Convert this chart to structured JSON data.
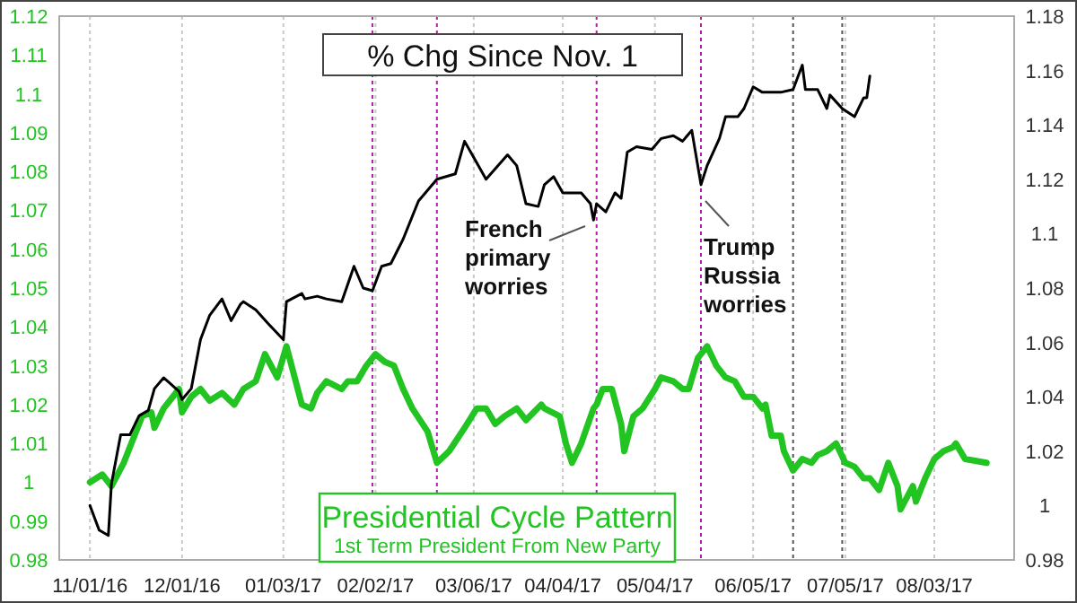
{
  "chart_data": {
    "type": "line",
    "title": "% Chg Since Nov. 1",
    "xlim": [
      "2016-10-22",
      "2017-08-29"
    ],
    "xticks": [
      {
        "value": "2016-11-01",
        "label": "11/01/16"
      },
      {
        "value": "2016-12-01",
        "label": "12/01/16"
      },
      {
        "value": "2017-01-03",
        "label": "01/03/17"
      },
      {
        "value": "2017-02-02",
        "label": "02/02/17"
      },
      {
        "value": "2017-03-06",
        "label": "03/06/17"
      },
      {
        "value": "2017-04-04",
        "label": "04/04/17"
      },
      {
        "value": "2017-05-04",
        "label": "05/04/17"
      },
      {
        "value": "2017-06-05",
        "label": "06/05/17"
      },
      {
        "value": "2017-07-05",
        "label": "07/05/17"
      },
      {
        "value": "2017-08-03",
        "label": "08/03/17"
      }
    ],
    "ylim": [
      0.98,
      1.12
    ],
    "yticks": [
      0.98,
      0.99,
      {
        "value": 1,
        "label": "1"
      },
      1.01,
      1.02,
      1.03,
      1.04,
      1.05,
      1.06,
      1.07,
      1.08,
      1.09,
      {
        "value": 1.1,
        "label": "1.1"
      },
      1.11,
      1.12
    ],
    "y2lim": [
      0.98,
      1.18
    ],
    "y2ticks": [
      0.98,
      {
        "value": 1,
        "label": "1"
      },
      1.02,
      1.04,
      1.06,
      1.08,
      {
        "value": 1.1,
        "label": "1.1"
      },
      1.12,
      1.14,
      1.16,
      1.18
    ],
    "grid": "x",
    "legend": "bottom",
    "line_style": "solid",
    "marker": "none",
    "series": [
      {
        "name": "Presidential Cycle Pattern",
        "color": "#22c422",
        "x": [
          "2016-11-01",
          "2016-11-05",
          "2016-11-08",
          "2016-11-10",
          "2016-11-12",
          "2016-11-15",
          "2016-11-18",
          "2016-11-21",
          "2016-11-22",
          "2016-11-25",
          "2016-11-30",
          "2016-12-01",
          "2016-12-04",
          "2016-12-07",
          "2016-12-10",
          "2016-12-14",
          "2016-12-18",
          "2016-12-21",
          "2016-12-25",
          "2016-12-28",
          "2017-01-01",
          "2017-01-04",
          "2017-01-06",
          "2017-01-09",
          "2017-01-12",
          "2017-01-14",
          "2017-01-17",
          "2017-01-22",
          "2017-01-24",
          "2017-01-27",
          "2017-01-30",
          "2017-02-02",
          "2017-02-05",
          "2017-02-08",
          "2017-02-11",
          "2017-02-14",
          "2017-02-19",
          "2017-02-22",
          "2017-02-26",
          "2017-03-03",
          "2017-03-07",
          "2017-03-10",
          "2017-03-13",
          "2017-03-16",
          "2017-03-20",
          "2017-03-23",
          "2017-03-28",
          "2017-03-29",
          "2017-04-03",
          "2017-04-05",
          "2017-04-07",
          "2017-04-10",
          "2017-04-14",
          "2017-04-15",
          "2017-04-17",
          "2017-04-20",
          "2017-04-23",
          "2017-04-24",
          "2017-04-27",
          "2017-04-30",
          "2017-05-04",
          "2017-05-06",
          "2017-05-10",
          "2017-05-13",
          "2017-05-15",
          "2017-05-18",
          "2017-05-21",
          "2017-05-24",
          "2017-05-27",
          "2017-05-30",
          "2017-06-02",
          "2017-06-05",
          "2017-06-08",
          "2017-06-09",
          "2017-06-11",
          "2017-06-14",
          "2017-06-15",
          "2017-06-18",
          "2017-06-21",
          "2017-06-24",
          "2017-06-26",
          "2017-06-29",
          "2017-07-02",
          "2017-07-05",
          "2017-07-08",
          "2017-07-11",
          "2017-07-13",
          "2017-07-16",
          "2017-07-19",
          "2017-07-22",
          "2017-07-23",
          "2017-07-27",
          "2017-07-28",
          "2017-07-31",
          "2017-08-03",
          "2017-08-06",
          "2017-08-09",
          "2017-08-10",
          "2017-08-13",
          "2017-08-20"
        ],
        "values": [
          1.0,
          1.002,
          0.999,
          1.002,
          1.005,
          1.011,
          1.017,
          1.018,
          1.014,
          1.019,
          1.024,
          1.018,
          1.022,
          1.024,
          1.021,
          1.023,
          1.02,
          1.024,
          1.026,
          1.033,
          1.027,
          1.035,
          1.029,
          1.02,
          1.019,
          1.023,
          1.026,
          1.024,
          1.026,
          1.026,
          1.03,
          1.033,
          1.031,
          1.03,
          1.024,
          1.019,
          1.013,
          1.005,
          1.008,
          1.014,
          1.019,
          1.019,
          1.015,
          1.017,
          1.019,
          1.016,
          1.02,
          1.019,
          1.017,
          1.01,
          1.005,
          1.01,
          1.019,
          1.02,
          1.024,
          1.024,
          1.015,
          1.008,
          1.017,
          1.019,
          1.024,
          1.027,
          1.026,
          1.024,
          1.024,
          1.032,
          1.035,
          1.03,
          1.027,
          1.026,
          1.022,
          1.022,
          1.019,
          1.02,
          1.012,
          1.012,
          1.008,
          1.003,
          1.006,
          1.005,
          1.007,
          1.008,
          1.01,
          1.005,
          1.004,
          1.001,
          1.001,
          0.998,
          1.005,
          0.999,
          0.993,
          0.999,
          0.995,
          1.001,
          1.006,
          1.008,
          1.009,
          1.01,
          1.006,
          1.005
        ]
      },
      {
        "color": "#000000",
        "axis": "y2",
        "x": [
          "2016-11-01",
          "2016-11-04",
          "2016-11-07",
          "2016-11-08",
          "2016-11-11",
          "2016-11-14",
          "2016-11-17",
          "2016-11-20",
          "2016-11-22",
          "2016-11-25",
          "2016-11-30",
          "2016-12-01",
          "2016-12-04",
          "2016-12-07",
          "2016-12-10",
          "2016-12-14",
          "2016-12-17",
          "2016-12-20",
          "2016-12-21",
          "2016-12-25",
          "2016-12-29",
          "2017-01-03",
          "2017-01-04",
          "2017-01-09",
          "2017-01-10",
          "2017-01-14",
          "2017-01-17",
          "2017-01-22",
          "2017-01-26",
          "2017-01-29",
          "2017-02-01",
          "2017-02-04",
          "2017-02-07",
          "2017-02-11",
          "2017-02-16",
          "2017-02-22",
          "2017-02-28",
          "2017-03-03",
          "2017-03-06",
          "2017-03-10",
          "2017-03-17",
          "2017-03-20",
          "2017-03-23",
          "2017-03-27",
          "2017-03-29",
          "2017-04-01",
          "2017-04-04",
          "2017-04-10",
          "2017-04-13",
          "2017-04-14",
          "2017-04-15",
          "2017-04-18",
          "2017-04-21",
          "2017-04-23",
          "2017-04-25",
          "2017-04-28",
          "2017-05-03",
          "2017-05-06",
          "2017-05-10",
          "2017-05-13",
          "2017-05-16",
          "2017-05-19",
          "2017-05-21",
          "2017-05-25",
          "2017-05-27",
          "2017-05-31",
          "2017-06-02",
          "2017-06-05",
          "2017-06-08",
          "2017-06-14",
          "2017-06-18",
          "2017-06-21",
          "2017-06-22",
          "2017-06-26",
          "2017-06-29",
          "2017-06-30",
          "2017-07-04",
          "2017-07-08",
          "2017-07-11",
          "2017-07-12",
          "2017-07-13"
        ],
        "values": [
          1.0,
          0.991,
          0.989,
          1.008,
          1.026,
          1.026,
          1.033,
          1.035,
          1.043,
          1.047,
          1.042,
          1.039,
          1.043,
          1.061,
          1.07,
          1.076,
          1.068,
          1.074,
          1.075,
          1.072,
          1.067,
          1.061,
          1.075,
          1.078,
          1.076,
          1.077,
          1.076,
          1.075,
          1.088,
          1.08,
          1.079,
          1.088,
          1.089,
          1.098,
          1.112,
          1.12,
          1.122,
          1.134,
          1.128,
          1.12,
          1.129,
          1.125,
          1.111,
          1.11,
          1.118,
          1.121,
          1.115,
          1.115,
          1.111,
          1.105,
          1.111,
          1.108,
          1.115,
          1.113,
          1.13,
          1.132,
          1.131,
          1.135,
          1.136,
          1.134,
          1.138,
          1.118,
          1.125,
          1.135,
          1.143,
          1.143,
          1.146,
          1.154,
          1.152,
          1.152,
          1.153,
          1.162,
          1.153,
          1.153,
          1.146,
          1.151,
          1.146,
          1.143,
          1.15,
          1.15,
          1.158
        ]
      }
    ],
    "ref_lines": [
      {
        "axis": "x",
        "value": "2017-02-01",
        "color": "#aa22aa",
        "line_style": "dotted"
      },
      {
        "axis": "x",
        "value": "2017-02-22",
        "color": "#aa22aa",
        "line_style": "dotted"
      },
      {
        "axis": "x",
        "value": "2017-04-15",
        "color": "#aa22aa",
        "line_style": "dotted"
      },
      {
        "axis": "x",
        "value": "2017-05-19",
        "color": "#aa22aa",
        "line_style": "dotted"
      },
      {
        "axis": "x",
        "value": "2017-06-18",
        "color": "#555555",
        "line_style": "dotted"
      },
      {
        "axis": "x",
        "value": "2017-07-04",
        "color": "#555555",
        "line_style": "dotted"
      }
    ],
    "annotations": [
      "French primary worries",
      "Trump Russia worries",
      "1st Term President From New Party"
    ]
  }
}
